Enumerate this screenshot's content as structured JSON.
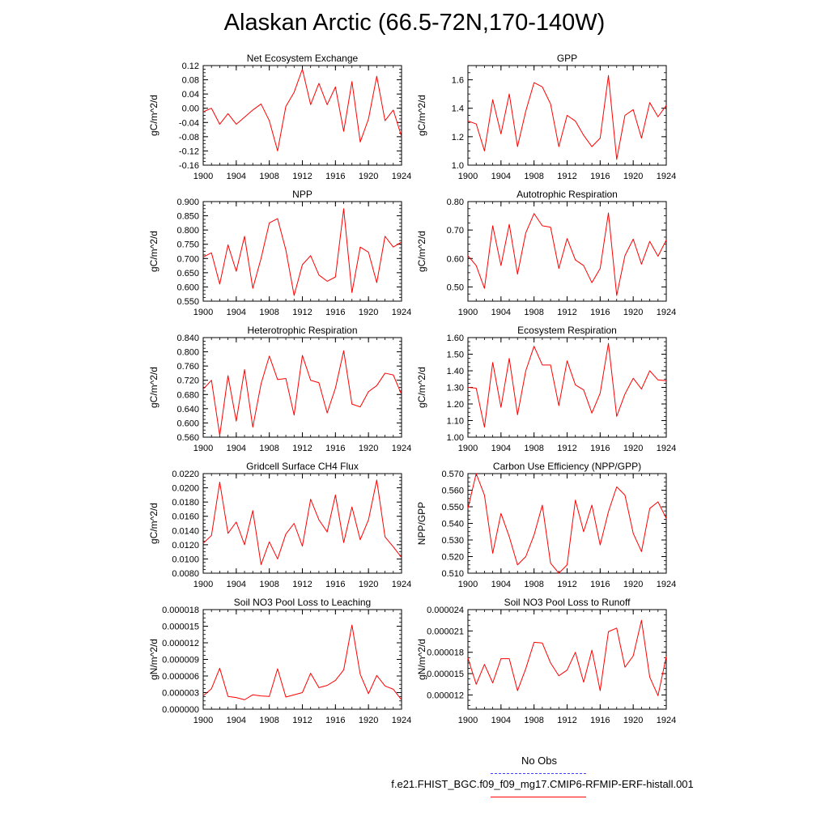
{
  "title": "Alaskan Arctic (66.5-72N,170-140W)",
  "legend": {
    "obs_label": "No Obs",
    "case_label": "f.e21.FHIST_BGC.f09_f09_mg17.CMIP6-RFMIP-ERF-histall.001",
    "obs_color": "#4040ff",
    "case_color": "#ff0000"
  },
  "chart_data": [
    {
      "type": "line",
      "title": "Net Ecosystem Exchange",
      "ylabel": "gC/m^2/d",
      "xlim": [
        1900,
        1924
      ],
      "xticks": [
        "1900",
        "1904",
        "1908",
        "1912",
        "1916",
        "1920",
        "1924"
      ],
      "ylim": [
        -0.16,
        0.12
      ],
      "yticks": [
        "-0.16",
        "-0.12",
        "-0.08",
        "-0.04",
        "0.00",
        "0.04",
        "0.08",
        "0.12"
      ],
      "series": [
        {
          "color": "#ff0000",
          "x": [
            1900,
            1901,
            1902,
            1903,
            1904,
            1905,
            1906,
            1907,
            1908,
            1909,
            1910,
            1911,
            1912,
            1913,
            1914,
            1915,
            1916,
            1917,
            1918,
            1919,
            1920,
            1921,
            1922,
            1923,
            1924
          ],
          "y": [
            -0.01,
            0.0,
            -0.045,
            -0.015,
            -0.045,
            -0.025,
            -0.005,
            0.012,
            -0.035,
            -0.12,
            0.005,
            0.045,
            0.11,
            0.01,
            0.07,
            0.01,
            0.06,
            -0.065,
            0.075,
            -0.095,
            -0.03,
            0.09,
            -0.035,
            -0.005,
            -0.08
          ]
        }
      ]
    },
    {
      "type": "line",
      "title": "GPP",
      "ylabel": "gC/m^2/d",
      "xlim": [
        1900,
        1924
      ],
      "xticks": [
        "1900",
        "1904",
        "1908",
        "1912",
        "1916",
        "1920",
        "1924"
      ],
      "ylim": [
        1.0,
        1.7
      ],
      "yticks": [
        "1.0",
        "1.2",
        "1.4",
        "1.6"
      ],
      "series": [
        {
          "color": "#ff0000",
          "x": [
            1900,
            1901,
            1902,
            1903,
            1904,
            1905,
            1906,
            1907,
            1908,
            1909,
            1910,
            1911,
            1912,
            1913,
            1914,
            1915,
            1916,
            1917,
            1918,
            1919,
            1920,
            1921,
            1922,
            1923,
            1924
          ],
          "y": [
            1.31,
            1.29,
            1.1,
            1.46,
            1.22,
            1.5,
            1.13,
            1.38,
            1.58,
            1.55,
            1.43,
            1.13,
            1.35,
            1.31,
            1.21,
            1.13,
            1.19,
            1.63,
            1.04,
            1.35,
            1.39,
            1.19,
            1.44,
            1.34,
            1.42
          ]
        }
      ]
    },
    {
      "type": "line",
      "title": "NPP",
      "ylabel": "gC/m^2/d",
      "xlim": [
        1900,
        1924
      ],
      "xticks": [
        "1900",
        "1904",
        "1908",
        "1912",
        "1916",
        "1920",
        "1924"
      ],
      "ylim": [
        0.55,
        0.9
      ],
      "yticks": [
        "0.550",
        "0.600",
        "0.650",
        "0.700",
        "0.750",
        "0.800",
        "0.850",
        "0.900"
      ],
      "series": [
        {
          "color": "#ff0000",
          "x": [
            1900,
            1901,
            1902,
            1903,
            1904,
            1905,
            1906,
            1907,
            1908,
            1909,
            1910,
            1911,
            1912,
            1913,
            1914,
            1915,
            1916,
            1917,
            1918,
            1919,
            1920,
            1921,
            1922,
            1923,
            1924
          ],
          "y": [
            0.705,
            0.72,
            0.61,
            0.748,
            0.655,
            0.778,
            0.595,
            0.7,
            0.825,
            0.84,
            0.73,
            0.57,
            0.678,
            0.71,
            0.642,
            0.62,
            0.635,
            0.875,
            0.58,
            0.74,
            0.722,
            0.615,
            0.778,
            0.74,
            0.758
          ]
        }
      ]
    },
    {
      "type": "line",
      "title": "Autotrophic Respiration",
      "ylabel": "gC/m^2/d",
      "xlim": [
        1900,
        1924
      ],
      "xticks": [
        "1900",
        "1904",
        "1908",
        "1912",
        "1916",
        "1920",
        "1924"
      ],
      "ylim": [
        0.45,
        0.8
      ],
      "yticks": [
        "0.50",
        "0.60",
        "0.70",
        "0.80"
      ],
      "series": [
        {
          "color": "#ff0000",
          "x": [
            1900,
            1901,
            1902,
            1903,
            1904,
            1905,
            1906,
            1907,
            1908,
            1909,
            1910,
            1911,
            1912,
            1913,
            1914,
            1915,
            1916,
            1917,
            1918,
            1919,
            1920,
            1921,
            1922,
            1923,
            1924
          ],
          "y": [
            0.61,
            0.575,
            0.495,
            0.715,
            0.575,
            0.72,
            0.545,
            0.69,
            0.758,
            0.715,
            0.71,
            0.565,
            0.67,
            0.595,
            0.575,
            0.515,
            0.565,
            0.76,
            0.47,
            0.61,
            0.668,
            0.58,
            0.66,
            0.608,
            0.665
          ]
        }
      ]
    },
    {
      "type": "line",
      "title": "Heterotrophic Respiration",
      "ylabel": "gC/m^2/d",
      "xlim": [
        1900,
        1924
      ],
      "xticks": [
        "1900",
        "1904",
        "1908",
        "1912",
        "1916",
        "1920",
        "1924"
      ],
      "ylim": [
        0.56,
        0.84
      ],
      "yticks": [
        "0.560",
        "0.600",
        "0.640",
        "0.680",
        "0.720",
        "0.760",
        "0.800",
        "0.840"
      ],
      "series": [
        {
          "color": "#ff0000",
          "x": [
            1900,
            1901,
            1902,
            1903,
            1904,
            1905,
            1906,
            1907,
            1908,
            1909,
            1910,
            1911,
            1912,
            1913,
            1914,
            1915,
            1916,
            1917,
            1918,
            1919,
            1920,
            1921,
            1922,
            1923,
            1924
          ],
          "y": [
            0.695,
            0.72,
            0.565,
            0.733,
            0.605,
            0.75,
            0.588,
            0.71,
            0.788,
            0.722,
            0.725,
            0.622,
            0.79,
            0.72,
            0.713,
            0.628,
            0.698,
            0.803,
            0.653,
            0.645,
            0.688,
            0.705,
            0.74,
            0.735,
            0.68
          ]
        }
      ]
    },
    {
      "type": "line",
      "title": "Ecosystem Respiration",
      "ylabel": "gC/m^2/d",
      "xlim": [
        1900,
        1924
      ],
      "xticks": [
        "1900",
        "1904",
        "1908",
        "1912",
        "1916",
        "1920",
        "1924"
      ],
      "ylim": [
        1.0,
        1.6
      ],
      "yticks": [
        "1.00",
        "1.10",
        "1.20",
        "1.30",
        "1.40",
        "1.50",
        "1.60"
      ],
      "series": [
        {
          "color": "#ff0000",
          "x": [
            1900,
            1901,
            1902,
            1903,
            1904,
            1905,
            1906,
            1907,
            1908,
            1909,
            1910,
            1911,
            1912,
            1913,
            1914,
            1915,
            1916,
            1917,
            1918,
            1919,
            1920,
            1921,
            1922,
            1923,
            1924
          ],
          "y": [
            1.3,
            1.295,
            1.06,
            1.45,
            1.18,
            1.475,
            1.135,
            1.4,
            1.548,
            1.435,
            1.435,
            1.19,
            1.46,
            1.315,
            1.285,
            1.145,
            1.265,
            1.565,
            1.125,
            1.26,
            1.355,
            1.29,
            1.4,
            1.345,
            1.34
          ]
        }
      ]
    },
    {
      "type": "line",
      "title": "Gridcell Surface CH4 Flux",
      "ylabel": "gC/m^2/d",
      "xlim": [
        1900,
        1924
      ],
      "xticks": [
        "1900",
        "1904",
        "1908",
        "1912",
        "1916",
        "1920",
        "1924"
      ],
      "ylim": [
        0.008,
        0.022
      ],
      "yticks": [
        "0.0080",
        "0.0100",
        "0.0120",
        "0.0140",
        "0.0160",
        "0.0180",
        "0.0200",
        "0.0220"
      ],
      "series": [
        {
          "color": "#ff0000",
          "x": [
            1900,
            1901,
            1902,
            1903,
            1904,
            1905,
            1906,
            1907,
            1908,
            1909,
            1910,
            1911,
            1912,
            1913,
            1914,
            1915,
            1916,
            1917,
            1918,
            1919,
            1920,
            1921,
            1922,
            1923,
            1924
          ],
          "y": [
            0.0122,
            0.0133,
            0.0208,
            0.0136,
            0.0152,
            0.012,
            0.0168,
            0.0092,
            0.0124,
            0.01,
            0.0135,
            0.015,
            0.0118,
            0.0184,
            0.0155,
            0.0138,
            0.019,
            0.0123,
            0.0173,
            0.0127,
            0.0155,
            0.0211,
            0.0131,
            0.0117,
            0.0102
          ]
        }
      ]
    },
    {
      "type": "line",
      "title": "Carbon Use Efficiency (NPP/GPP)",
      "ylabel": "NPP/GPP",
      "xlim": [
        1900,
        1924
      ],
      "xticks": [
        "1900",
        "1904",
        "1908",
        "1912",
        "1916",
        "1920",
        "1924"
      ],
      "ylim": [
        0.51,
        0.57
      ],
      "yticks": [
        "0.510",
        "0.520",
        "0.530",
        "0.540",
        "0.550",
        "0.560",
        "0.570"
      ],
      "series": [
        {
          "color": "#ff0000",
          "x": [
            1900,
            1901,
            1902,
            1903,
            1904,
            1905,
            1906,
            1907,
            1908,
            1909,
            1910,
            1911,
            1912,
            1913,
            1914,
            1915,
            1916,
            1917,
            1918,
            1919,
            1920,
            1921,
            1922,
            1923,
            1924
          ],
          "y": [
            0.549,
            0.57,
            0.557,
            0.522,
            0.546,
            0.532,
            0.515,
            0.52,
            0.533,
            0.551,
            0.516,
            0.51,
            0.515,
            0.554,
            0.535,
            0.551,
            0.527,
            0.547,
            0.562,
            0.557,
            0.534,
            0.523,
            0.549,
            0.553,
            0.543
          ]
        }
      ]
    },
    {
      "type": "line",
      "title": "Soil NO3 Pool Loss to Leaching",
      "ylabel": "gN/m^2/d",
      "xlim": [
        1900,
        1924
      ],
      "xticks": [
        "1900",
        "1904",
        "1908",
        "1912",
        "1916",
        "1920",
        "1924"
      ],
      "ylim": [
        0.0,
        1.8e-05
      ],
      "yticks": [
        "0.000000",
        "0.000003",
        "0.000006",
        "0.000009",
        "0.000012",
        "0.000015",
        "0.000018"
      ],
      "series": [
        {
          "color": "#ff0000",
          "x": [
            1900,
            1901,
            1902,
            1903,
            1904,
            1905,
            1906,
            1907,
            1908,
            1909,
            1910,
            1911,
            1912,
            1913,
            1914,
            1915,
            1916,
            1917,
            1918,
            1919,
            1920,
            1921,
            1922,
            1923,
            1924
          ],
          "y": [
            2.4e-06,
            3.7e-06,
            7.4e-06,
            2.3e-06,
            2.1e-06,
            1.7e-06,
            2.6e-06,
            2.4e-06,
            2.3e-06,
            7.3e-06,
            2.2e-06,
            2.6e-06,
            3e-06,
            6.5e-06,
            3.9e-06,
            4.3e-06,
            5.2e-06,
            7.1e-06,
            1.52e-05,
            6.3e-06,
            2.8e-06,
            6.1e-06,
            4.2e-06,
            3.6e-06,
            1.7e-06
          ]
        }
      ]
    },
    {
      "type": "line",
      "title": "Soil NO3 Pool Loss to Runoff",
      "ylabel": "gN/m^2/d",
      "xlim": [
        1900,
        1924
      ],
      "xticks": [
        "1900",
        "1904",
        "1908",
        "1912",
        "1916",
        "1920",
        "1924"
      ],
      "ylim": [
        1e-05,
        2.4e-05
      ],
      "yticks": [
        "0.000012",
        "0.000015",
        "0.000018",
        "0.000021",
        "0.000024"
      ],
      "series": [
        {
          "color": "#ff0000",
          "x": [
            1900,
            1901,
            1902,
            1903,
            1904,
            1905,
            1906,
            1907,
            1908,
            1909,
            1910,
            1911,
            1912,
            1913,
            1914,
            1915,
            1916,
            1917,
            1918,
            1919,
            1920,
            1921,
            1922,
            1923,
            1924
          ],
          "y": [
            1.72e-05,
            1.35e-05,
            1.63e-05,
            1.37e-05,
            1.71e-05,
            1.71e-05,
            1.26e-05,
            1.57e-05,
            1.94e-05,
            1.93e-05,
            1.65e-05,
            1.47e-05,
            1.55e-05,
            1.8e-05,
            1.38e-05,
            1.83e-05,
            1.26e-05,
            2.09e-05,
            2.14e-05,
            1.59e-05,
            1.75e-05,
            2.25e-05,
            1.45e-05,
            1.19e-05,
            1.74e-05
          ]
        }
      ]
    }
  ]
}
